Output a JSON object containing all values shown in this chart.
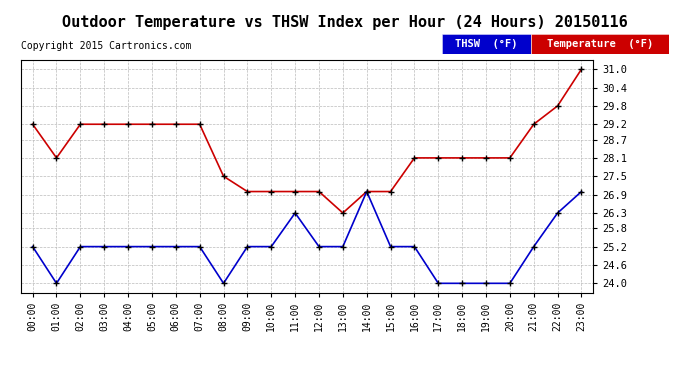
{
  "title": "Outdoor Temperature vs THSW Index per Hour (24 Hours) 20150116",
  "copyright": "Copyright 2015 Cartronics.com",
  "hours": [
    0,
    1,
    2,
    3,
    4,
    5,
    6,
    7,
    8,
    9,
    10,
    11,
    12,
    13,
    14,
    15,
    16,
    17,
    18,
    19,
    20,
    21,
    22,
    23
  ],
  "temperature": [
    29.2,
    28.1,
    29.2,
    29.2,
    29.2,
    29.2,
    29.2,
    29.2,
    27.5,
    27.0,
    27.0,
    27.0,
    27.0,
    26.3,
    27.0,
    27.0,
    28.1,
    28.1,
    28.1,
    28.1,
    28.1,
    29.2,
    29.8,
    31.0
  ],
  "thsw": [
    25.2,
    24.0,
    25.2,
    25.2,
    25.2,
    25.2,
    25.2,
    25.2,
    24.0,
    25.2,
    25.2,
    26.3,
    25.2,
    25.2,
    27.0,
    25.2,
    25.2,
    24.0,
    24.0,
    24.0,
    24.0,
    25.2,
    26.3,
    27.0
  ],
  "ylim": [
    23.7,
    31.3
  ],
  "yticks": [
    24.0,
    24.6,
    25.2,
    25.8,
    26.3,
    26.9,
    27.5,
    28.1,
    28.7,
    29.2,
    29.8,
    30.4,
    31.0
  ],
  "temp_color": "#cc0000",
  "thsw_color": "#0000cc",
  "bg_color": "#ffffff",
  "grid_color": "#bbbbbb",
  "legend_thsw_bg": "#0000cc",
  "legend_temp_bg": "#cc0000",
  "title_fontsize": 11,
  "copyright_fontsize": 7
}
